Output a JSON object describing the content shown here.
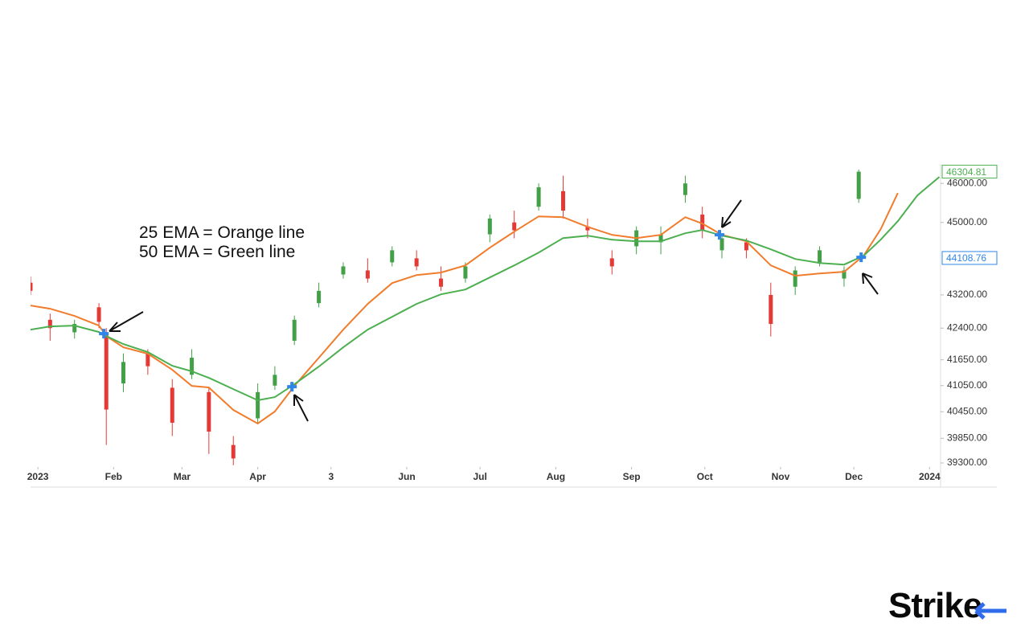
{
  "chart_data": {
    "type": "candlestick",
    "annotations": [
      "25 EMA = Orange line",
      "50 EMA = Green line"
    ],
    "log_scale": true,
    "xlim": [
      -3,
      369.5
    ],
    "ylim": [
      39229,
      46380
    ],
    "xticks": [
      {
        "value": 0,
        "label": "2023"
      },
      {
        "value": 31,
        "label": "Feb"
      },
      {
        "value": 59,
        "label": "Mar"
      },
      {
        "value": 90,
        "label": "Apr"
      },
      {
        "value": 120,
        "label": "3"
      },
      {
        "value": 151,
        "label": "Jun"
      },
      {
        "value": 181,
        "label": "Jul"
      },
      {
        "value": 212,
        "label": "Aug"
      },
      {
        "value": 243,
        "label": "Sep"
      },
      {
        "value": 273,
        "label": "Oct"
      },
      {
        "value": 304,
        "label": "Nov"
      },
      {
        "value": 334,
        "label": "Dec"
      },
      {
        "value": 365,
        "label": "2024"
      }
    ],
    "yticks": [
      {
        "value": 46000,
        "label": "46000.00"
      },
      {
        "value": 45000,
        "label": "45000.00"
      },
      {
        "value": 43200,
        "label": "43200.00"
      },
      {
        "value": 42400,
        "label": "42400.00"
      },
      {
        "value": 41650,
        "label": "41650.00"
      },
      {
        "value": 41050,
        "label": "41050.00"
      },
      {
        "value": 40450,
        "label": "40450.00"
      },
      {
        "value": 39850,
        "label": "39850.00"
      },
      {
        "value": 39300,
        "label": "39300.00"
      }
    ],
    "candles": {
      "up_color": "#43a047",
      "down_color": "#e53935",
      "x": [
        -3,
        5,
        15,
        25,
        28,
        35,
        45,
        55,
        63,
        70,
        80,
        90,
        97,
        105,
        115,
        125,
        135,
        145,
        155,
        165,
        175,
        185,
        195,
        205,
        215,
        225,
        235,
        245,
        255,
        265,
        272,
        280,
        290,
        300,
        310,
        320,
        330,
        336
      ],
      "open": [
        43500,
        42600,
        42300,
        42900,
        42300,
        41100,
        41800,
        41000,
        41300,
        40900,
        39700,
        40300,
        41050,
        42100,
        43000,
        43700,
        43800,
        44000,
        44100,
        43600,
        43600,
        44700,
        45000,
        45400,
        45800,
        44900,
        44100,
        44400,
        44500,
        45700,
        45200,
        44300,
        44500,
        43200,
        43400,
        44000,
        43600,
        45600
      ],
      "high": [
        43650,
        42750,
        42600,
        43000,
        42400,
        41800,
        41900,
        41200,
        41900,
        41000,
        39900,
        41100,
        41500,
        42700,
        43500,
        44000,
        44100,
        44400,
        44300,
        43900,
        44000,
        45200,
        45300,
        46000,
        46200,
        45100,
        44300,
        44900,
        44900,
        46200,
        45400,
        44700,
        44600,
        43500,
        43900,
        44400,
        43900,
        46360
      ],
      "low": [
        43200,
        42100,
        42150,
        42400,
        39700,
        40900,
        41300,
        39900,
        41200,
        39500,
        39250,
        40200,
        40950,
        42000,
        42900,
        43600,
        43500,
        43900,
        43800,
        43300,
        43500,
        44500,
        44600,
        45300,
        45100,
        44600,
        43700,
        44200,
        44200,
        45500,
        44600,
        44100,
        44100,
        42200,
        43200,
        43900,
        43400,
        45500
      ],
      "close": [
        43300,
        42400,
        42500,
        42550,
        40500,
        41600,
        41500,
        40200,
        41700,
        40000,
        39400,
        40900,
        41300,
        42600,
        43300,
        43900,
        43600,
        44300,
        43900,
        43400,
        43900,
        45100,
        44800,
        45900,
        45300,
        44800,
        43900,
        44800,
        44700,
        46000,
        44800,
        44600,
        44300,
        42500,
        43800,
        44300,
        43800,
        46304.81
      ]
    },
    "x": [
      -3,
      5,
      15,
      25,
      28,
      35,
      45,
      55,
      63,
      70,
      80,
      90,
      97,
      105,
      115,
      125,
      135,
      145,
      155,
      165,
      175,
      185,
      195,
      205,
      215,
      225,
      235,
      245,
      255,
      265,
      272,
      280,
      290,
      300,
      310,
      320,
      330,
      338,
      345,
      352,
      360,
      369
    ],
    "series": [
      {
        "color": "#f07c2c",
        "values": [
          42943,
          42865,
          42691,
          42460,
          42211,
          41945,
          41793,
          41417,
          41044,
          41007,
          40491,
          40181,
          40455,
          41044,
          41699,
          42364,
          42982,
          43490,
          43687,
          43747,
          43925,
          44364,
          44768,
          45153,
          45133,
          44889,
          44687,
          44606,
          44687,
          45133,
          44970,
          44687,
          44525,
          43925,
          43668,
          43727,
          43767,
          44163,
          44828,
          45750,
          null,
          null
        ]
      },
      {
        "color": "#4caf50",
        "values": [
          42364,
          42441,
          42460,
          42307,
          42211,
          42021,
          41831,
          41511,
          41380,
          41230,
          40970,
          40712,
          40785,
          41081,
          41492,
          41945,
          42364,
          42672,
          42982,
          43215,
          43333,
          43628,
          43925,
          44244,
          44606,
          44666,
          44565,
          44525,
          44525,
          44727,
          44808,
          44666,
          44545,
          44324,
          44084,
          43985,
          43945,
          44163,
          44565,
          45031,
          45688,
          46169
        ]
      }
    ],
    "crossovers": {
      "color": "#2f86e8",
      "x": [
        27,
        104,
        279,
        337
      ],
      "y": [
        42268,
        41025,
        44687,
        44124
      ]
    },
    "price_labels": [
      {
        "value": 46304.81,
        "color": "#4caf50"
      },
      {
        "value": 44108.76,
        "color": "#2f86e8"
      }
    ]
  },
  "logo": "Strike"
}
